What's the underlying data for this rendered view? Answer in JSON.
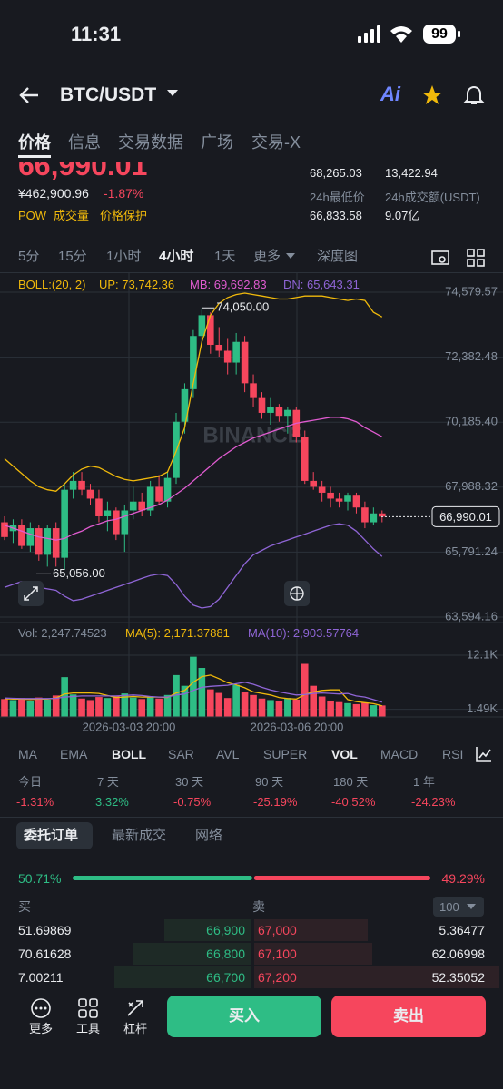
{
  "status_bar": {
    "time": "11:31",
    "battery": "99"
  },
  "header": {
    "pair": "BTC/USDT",
    "ai": "Ai"
  },
  "tabs": [
    "价格",
    "信息",
    "交易数据",
    "广场",
    "交易-X"
  ],
  "price_info": {
    "last_price": "66,990.01",
    "cny_price": "¥462,900.96",
    "change": "-1.87%",
    "tags": [
      "POW",
      "成交量",
      "价格保护"
    ],
    "stats": [
      [
        "68,265.03",
        "13,422.94"
      ],
      [
        "24h最低价",
        "24h成交额(USDT)"
      ],
      [
        "66,833.58",
        "9.07亿"
      ]
    ]
  },
  "intervals": [
    "5分",
    "15分",
    "1小时",
    "4小时",
    "1天",
    "更多",
    "深度图"
  ],
  "boll_legend": {
    "name": "BOLL:(20, 2)",
    "up": "UP: 73,742.36",
    "mb": "MB: 69,692.83",
    "dn": "DN: 65,643.31"
  },
  "chart_data": {
    "type": "candlestick",
    "ylim": [
      63594.16,
      74579.57
    ],
    "yticks": [
      {
        "value": 74579.57,
        "label": "74,579.57"
      },
      {
        "value": 72382.48,
        "label": "72,382.48"
      },
      {
        "value": 70185.4,
        "label": "70,185.40"
      },
      {
        "value": 67988.32,
        "label": "67,988.32"
      },
      {
        "value": 65791.24,
        "label": "65,791.24"
      },
      {
        "value": 63594.16,
        "label": "63,594.16"
      }
    ],
    "current_price": {
      "value": 66990.01,
      "label": "66,990.01"
    },
    "high_marker": {
      "value": 74050,
      "label": "74,050.00"
    },
    "low_marker": {
      "value": 65056,
      "label": "65,056.00"
    },
    "watermark": "BINANCE",
    "ohlc": [
      [
        66800,
        67000,
        66200,
        66300
      ],
      [
        66500,
        66900,
        66100,
        66700
      ],
      [
        66700,
        66900,
        65900,
        66000
      ],
      [
        66000,
        66800,
        65800,
        66600
      ],
      [
        66600,
        66700,
        65500,
        65700
      ],
      [
        65700,
        66700,
        65300,
        66600
      ],
      [
        66600,
        66800,
        65300,
        65600
      ],
      [
        65600,
        68100,
        65200,
        67900
      ],
      [
        67900,
        68500,
        67600,
        68200
      ],
      [
        68200,
        68500,
        67700,
        67900
      ],
      [
        67900,
        68100,
        67400,
        67600
      ],
      [
        67600,
        67900,
        66800,
        67000
      ],
      [
        67000,
        67500,
        66500,
        67200
      ],
      [
        67200,
        67300,
        66200,
        66400
      ],
      [
        66400,
        67400,
        65800,
        67200
      ],
      [
        67200,
        68000,
        66900,
        67500
      ],
      [
        67500,
        67800,
        67000,
        67200
      ],
      [
        67200,
        68200,
        67000,
        68000
      ],
      [
        68000,
        68400,
        67400,
        67500
      ],
      [
        67500,
        68500,
        67300,
        68300
      ],
      [
        68300,
        70500,
        68100,
        70200
      ],
      [
        70200,
        71500,
        69800,
        71300
      ],
      [
        71300,
        73300,
        71000,
        73100
      ],
      [
        73100,
        74050,
        72700,
        73800
      ],
      [
        73800,
        73900,
        72500,
        72800
      ],
      [
        72800,
        73400,
        72400,
        72600
      ],
      [
        72600,
        73000,
        71800,
        72200
      ],
      [
        72200,
        73200,
        71800,
        72900
      ],
      [
        72900,
        73100,
        71200,
        71500
      ],
      [
        71500,
        71800,
        70700,
        71000
      ],
      [
        71000,
        71200,
        70300,
        70500
      ],
      [
        70500,
        71000,
        70100,
        70700
      ],
      [
        70700,
        70800,
        70200,
        70400
      ],
      [
        70400,
        70700,
        69800,
        70600
      ],
      [
        70600,
        70700,
        69500,
        69700
      ],
      [
        69700,
        69900,
        68100,
        68200
      ],
      [
        68200,
        68500,
        67900,
        68000
      ],
      [
        68000,
        68200,
        67500,
        67800
      ],
      [
        67800,
        68000,
        67300,
        67600
      ],
      [
        67600,
        67800,
        67300,
        67500
      ],
      [
        67500,
        67800,
        67200,
        67700
      ],
      [
        67700,
        67800,
        67100,
        67300
      ],
      [
        67300,
        67500,
        66600,
        66800
      ],
      [
        66800,
        67300,
        66700,
        67100
      ],
      [
        67100,
        67200,
        66800,
        66990
      ]
    ],
    "boll_series": [
      {
        "name": "UP",
        "color": "#f0b90b",
        "values": [
          68950,
          68700,
          68450,
          68200,
          68000,
          67900,
          67850,
          68100,
          68400,
          68600,
          68700,
          68650,
          68500,
          68350,
          68250,
          68200,
          68250,
          68300,
          68350,
          68500,
          69200,
          70000,
          71500,
          72900,
          73800,
          74200,
          74400,
          74500,
          74550,
          74500,
          74450,
          74400,
          74350,
          74350,
          74400,
          74450,
          74450,
          74450,
          74400,
          74350,
          74300,
          74350,
          74300,
          73900,
          73742.36
        ]
      },
      {
        "name": "MB",
        "color": "#e05bd0",
        "values": [
          66700,
          66600,
          66500,
          66400,
          66300,
          66250,
          66200,
          66250,
          66400,
          66500,
          66650,
          66750,
          66850,
          66900,
          67000,
          67100,
          67200,
          67300,
          67400,
          67550,
          67750,
          67950,
          68200,
          68450,
          68700,
          68950,
          69150,
          69350,
          69500,
          69650,
          69750,
          69850,
          69950,
          70050,
          70150,
          70200,
          70250,
          70300,
          70350,
          70350,
          70300,
          70200,
          70000,
          69850,
          69692.83
        ]
      },
      {
        "name": "DN",
        "color": "#8f65d6",
        "values": [
          64600,
          64700,
          64800,
          64700,
          64600,
          64550,
          64500,
          64300,
          64150,
          64200,
          64300,
          64400,
          64500,
          64600,
          64700,
          64800,
          64900,
          65000,
          65050,
          65000,
          64700,
          64300,
          64000,
          63900,
          63950,
          64200,
          64600,
          65000,
          65400,
          65700,
          65850,
          66000,
          66100,
          66200,
          66300,
          66400,
          66500,
          66600,
          66700,
          66750,
          66700,
          66500,
          66200,
          65900,
          65643.31
        ]
      }
    ],
    "volume": {
      "legend": {
        "vol": "Vol: 2,247.74523",
        "ma5": "MA(5): 2,171.37881",
        "ma10": "MA(10): 2,903.57764"
      },
      "ylim": [
        0,
        13870
      ],
      "yticks": [
        {
          "value": 12100,
          "label": "12.1K"
        },
        {
          "value": 1490,
          "label": "1.49K"
        }
      ],
      "values": [
        3500,
        3300,
        3700,
        3200,
        3800,
        3400,
        4200,
        7800,
        4400,
        3600,
        3300,
        3900,
        3700,
        4100,
        4600,
        3800,
        3500,
        3900,
        3600,
        4300,
        8200,
        6100,
        11800,
        9600,
        5400,
        4700,
        3700,
        6300,
        4900,
        4300,
        3600,
        3300,
        3100,
        3700,
        3400,
        10400,
        6100,
        4000,
        3200,
        2900,
        2700,
        2500,
        2800,
        2300,
        2247.74523
      ],
      "ma_series": [
        {
          "name": "MA(5)",
          "color": "#f0b90b",
          "values": [
            3600,
            3500,
            3500,
            3400,
            3500,
            3500,
            3700,
            4500,
            4700,
            4700,
            4700,
            4600,
            4200,
            3800,
            3900,
            4000,
            3900,
            3900,
            3900,
            3800,
            4700,
            5200,
            6800,
            7900,
            8200,
            7500,
            6700,
            6300,
            5700,
            4900,
            4600,
            4300,
            3800,
            3600,
            3500,
            4400,
            4900,
            5200,
            5300,
            5300,
            3400,
            3000,
            2800,
            2600,
            2171.37881
          ]
        },
        {
          "name": "MA(10)",
          "color": "#8f65d6",
          "values": [
            3700,
            3650,
            3600,
            3600,
            3600,
            3600,
            3650,
            3900,
            4000,
            4100,
            4100,
            4100,
            4100,
            4100,
            4200,
            4300,
            4200,
            4000,
            3900,
            3900,
            4300,
            4500,
            5200,
            5800,
            6000,
            6100,
            6200,
            6500,
            6800,
            6400,
            5800,
            5300,
            4900,
            4600,
            4300,
            4400,
            4600,
            4700,
            4600,
            4500,
            4600,
            4100,
            3900,
            3400,
            2903.57764
          ]
        }
      ]
    },
    "x_labels": [
      "2026-03-03 20:00",
      "2026-03-06 20:00"
    ]
  },
  "indicators": [
    "MA",
    "EMA",
    "BOLL",
    "SAR",
    "AVL",
    "SUPER",
    "VOL",
    "MACD",
    "RSI"
  ],
  "performance": [
    {
      "label": "今日",
      "value": "-1.31%"
    },
    {
      "label": "7 天",
      "value": "3.32%"
    },
    {
      "label": "30 天",
      "value": "-0.75%"
    },
    {
      "label": "90 天",
      "value": "-25.19%"
    },
    {
      "label": "180 天",
      "value": "-40.52%"
    },
    {
      "label": "1 年",
      "value": "-24.23%"
    }
  ],
  "book_tabs": [
    "委托订单",
    "最新成交",
    "网络"
  ],
  "ratio": {
    "buy": {
      "value": 50.71,
      "label": "50.71%"
    },
    "sell": {
      "value": 49.29,
      "label": "49.29%"
    }
  },
  "book_header": {
    "buy": "买",
    "sell": "卖",
    "depth": "100"
  },
  "order_book": [
    [
      "51.69869",
      "66,900",
      "67,000",
      "5.36477"
    ],
    [
      "70.61628",
      "66,800",
      "67,100",
      "62.06998"
    ],
    [
      "7.00211",
      "66,700",
      "67,200",
      "52.35052"
    ]
  ],
  "bottom_bar": {
    "tools": [
      "更多",
      "工具",
      "杠杆"
    ],
    "buy": "买入",
    "sell": "卖出"
  }
}
